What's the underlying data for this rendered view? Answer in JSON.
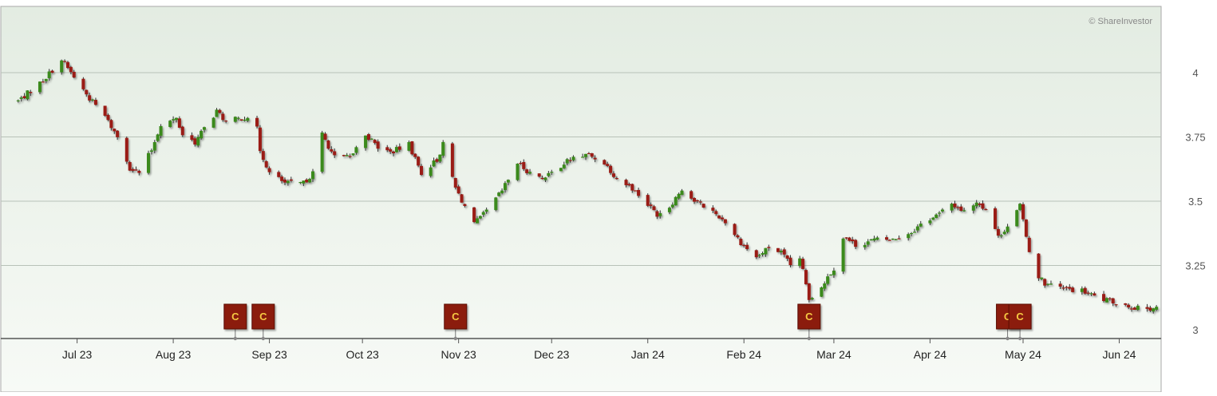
{
  "chart_data": {
    "type": "candlestick",
    "watermark": "© ShareInvestor",
    "ylim": [
      2.98,
      4.07
    ],
    "y_ticks": [
      3,
      3.25,
      3.5,
      3.75,
      4
    ],
    "y_tick_labels": [
      "3",
      "3.25",
      "3.5",
      "3.75",
      "4"
    ],
    "x_range": [
      "2023-06-10",
      "2024-06-14"
    ],
    "month_ticks": [
      {
        "date": "2023-07-01",
        "label": "Jul 23"
      },
      {
        "date": "2023-08-01",
        "label": "Aug 23"
      },
      {
        "date": "2023-09-01",
        "label": "Sep 23"
      },
      {
        "date": "2023-10-01",
        "label": "Oct 23"
      },
      {
        "date": "2023-11-01",
        "label": "Nov 23"
      },
      {
        "date": "2023-12-01",
        "label": "Dec 23"
      },
      {
        "date": "2024-01-01",
        "label": "Jan 24"
      },
      {
        "date": "2024-02-01",
        "label": "Feb 24"
      },
      {
        "date": "2024-03-01",
        "label": "Mar 24"
      },
      {
        "date": "2024-04-01",
        "label": "Apr 24"
      },
      {
        "date": "2024-05-01",
        "label": "May 24"
      },
      {
        "date": "2024-06-01",
        "label": "Jun 24"
      }
    ],
    "price_path": [
      [
        "2023-06-12",
        3.89
      ],
      [
        "2023-06-20",
        3.97
      ],
      [
        "2023-06-26",
        4.05
      ],
      [
        "2023-07-05",
        3.9
      ],
      [
        "2023-07-10",
        3.83
      ],
      [
        "2023-07-14",
        3.75
      ],
      [
        "2023-07-18",
        3.63
      ],
      [
        "2023-07-21",
        3.61
      ],
      [
        "2023-07-25",
        3.7
      ],
      [
        "2023-07-28",
        3.8
      ],
      [
        "2023-08-02",
        3.82
      ],
      [
        "2023-08-04",
        3.76
      ],
      [
        "2023-08-08",
        3.73
      ],
      [
        "2023-08-12",
        3.8
      ],
      [
        "2023-08-15",
        3.85
      ],
      [
        "2023-08-18",
        3.81
      ],
      [
        "2023-08-22",
        3.82
      ],
      [
        "2023-08-25",
        3.83
      ],
      [
        "2023-08-28",
        3.78
      ],
      [
        "2023-08-29",
        3.7
      ],
      [
        "2023-09-01",
        3.61
      ],
      [
        "2023-09-06",
        3.57
      ],
      [
        "2023-09-12",
        3.57
      ],
      [
        "2023-09-15",
        3.61
      ],
      [
        "2023-09-18",
        3.76
      ],
      [
        "2023-09-22",
        3.67
      ],
      [
        "2023-09-27",
        3.67
      ],
      [
        "2023-10-02",
        3.76
      ],
      [
        "2023-10-06",
        3.71
      ],
      [
        "2023-10-10",
        3.69
      ],
      [
        "2023-10-16",
        3.72
      ],
      [
        "2023-10-20",
        3.61
      ],
      [
        "2023-10-25",
        3.66
      ],
      [
        "2023-10-27",
        3.72
      ],
      [
        "2023-10-31",
        3.55
      ],
      [
        "2023-11-06",
        3.41
      ],
      [
        "2023-11-10",
        3.46
      ],
      [
        "2023-11-15",
        3.54
      ],
      [
        "2023-11-20",
        3.65
      ],
      [
        "2023-11-24",
        3.61
      ],
      [
        "2023-11-29",
        3.59
      ],
      [
        "2023-12-04",
        3.64
      ],
      [
        "2023-12-08",
        3.67
      ],
      [
        "2023-12-13",
        3.68
      ],
      [
        "2023-12-18",
        3.65
      ],
      [
        "2023-12-22",
        3.59
      ],
      [
        "2023-12-27",
        3.55
      ],
      [
        "2023-12-31",
        3.5
      ],
      [
        "2024-01-04",
        3.45
      ],
      [
        "2024-01-08",
        3.48
      ],
      [
        "2024-01-12",
        3.55
      ],
      [
        "2024-01-16",
        3.5
      ],
      [
        "2024-01-21",
        3.47
      ],
      [
        "2024-01-26",
        3.42
      ],
      [
        "2024-01-31",
        3.34
      ],
      [
        "2024-02-05",
        3.28
      ],
      [
        "2024-02-09",
        3.32
      ],
      [
        "2024-02-13",
        3.3
      ],
      [
        "2024-02-16",
        3.25
      ],
      [
        "2024-02-19",
        3.28
      ],
      [
        "2024-02-22",
        3.12
      ],
      [
        "2024-02-26",
        3.17
      ],
      [
        "2024-03-01",
        3.24
      ],
      [
        "2024-03-04",
        3.36
      ],
      [
        "2024-03-08",
        3.33
      ],
      [
        "2024-03-14",
        3.35
      ],
      [
        "2024-03-20",
        3.35
      ],
      [
        "2024-03-26",
        3.38
      ],
      [
        "2024-03-30",
        3.42
      ],
      [
        "2024-04-04",
        3.45
      ],
      [
        "2024-04-08",
        3.49
      ],
      [
        "2024-04-12",
        3.46
      ],
      [
        "2024-04-16",
        3.5
      ],
      [
        "2024-04-20",
        3.46
      ],
      [
        "2024-04-23",
        3.36
      ],
      [
        "2024-04-27",
        3.42
      ],
      [
        "2024-04-30",
        3.48
      ],
      [
        "2024-05-02",
        3.37
      ],
      [
        "2024-05-04",
        3.24
      ],
      [
        "2024-05-08",
        3.18
      ],
      [
        "2024-05-14",
        3.16
      ],
      [
        "2024-05-20",
        3.15
      ],
      [
        "2024-05-26",
        3.12
      ],
      [
        "2024-06-02",
        3.1
      ],
      [
        "2024-06-08",
        3.08
      ],
      [
        "2024-06-14",
        3.09
      ]
    ],
    "corporate_actions": [
      {
        "date": "2023-08-21",
        "label": "C"
      },
      {
        "date": "2023-08-30",
        "label": "C"
      },
      {
        "date": "2023-10-31",
        "label": "C"
      },
      {
        "date": "2024-02-22",
        "label": "C"
      },
      {
        "date": "2024-04-26",
        "label": "C"
      },
      {
        "date": "2024-04-30",
        "label": "C"
      }
    ],
    "colors": {
      "up": "#3a8a1a",
      "down": "#9a1a14",
      "marker_fill": "#8b1a10",
      "marker_text": "#f5c842",
      "grid": "#b8c2b8",
      "axis_text": "#555555",
      "bg_top": "#e3ece2",
      "bg_bottom": "#f7faf6"
    }
  }
}
